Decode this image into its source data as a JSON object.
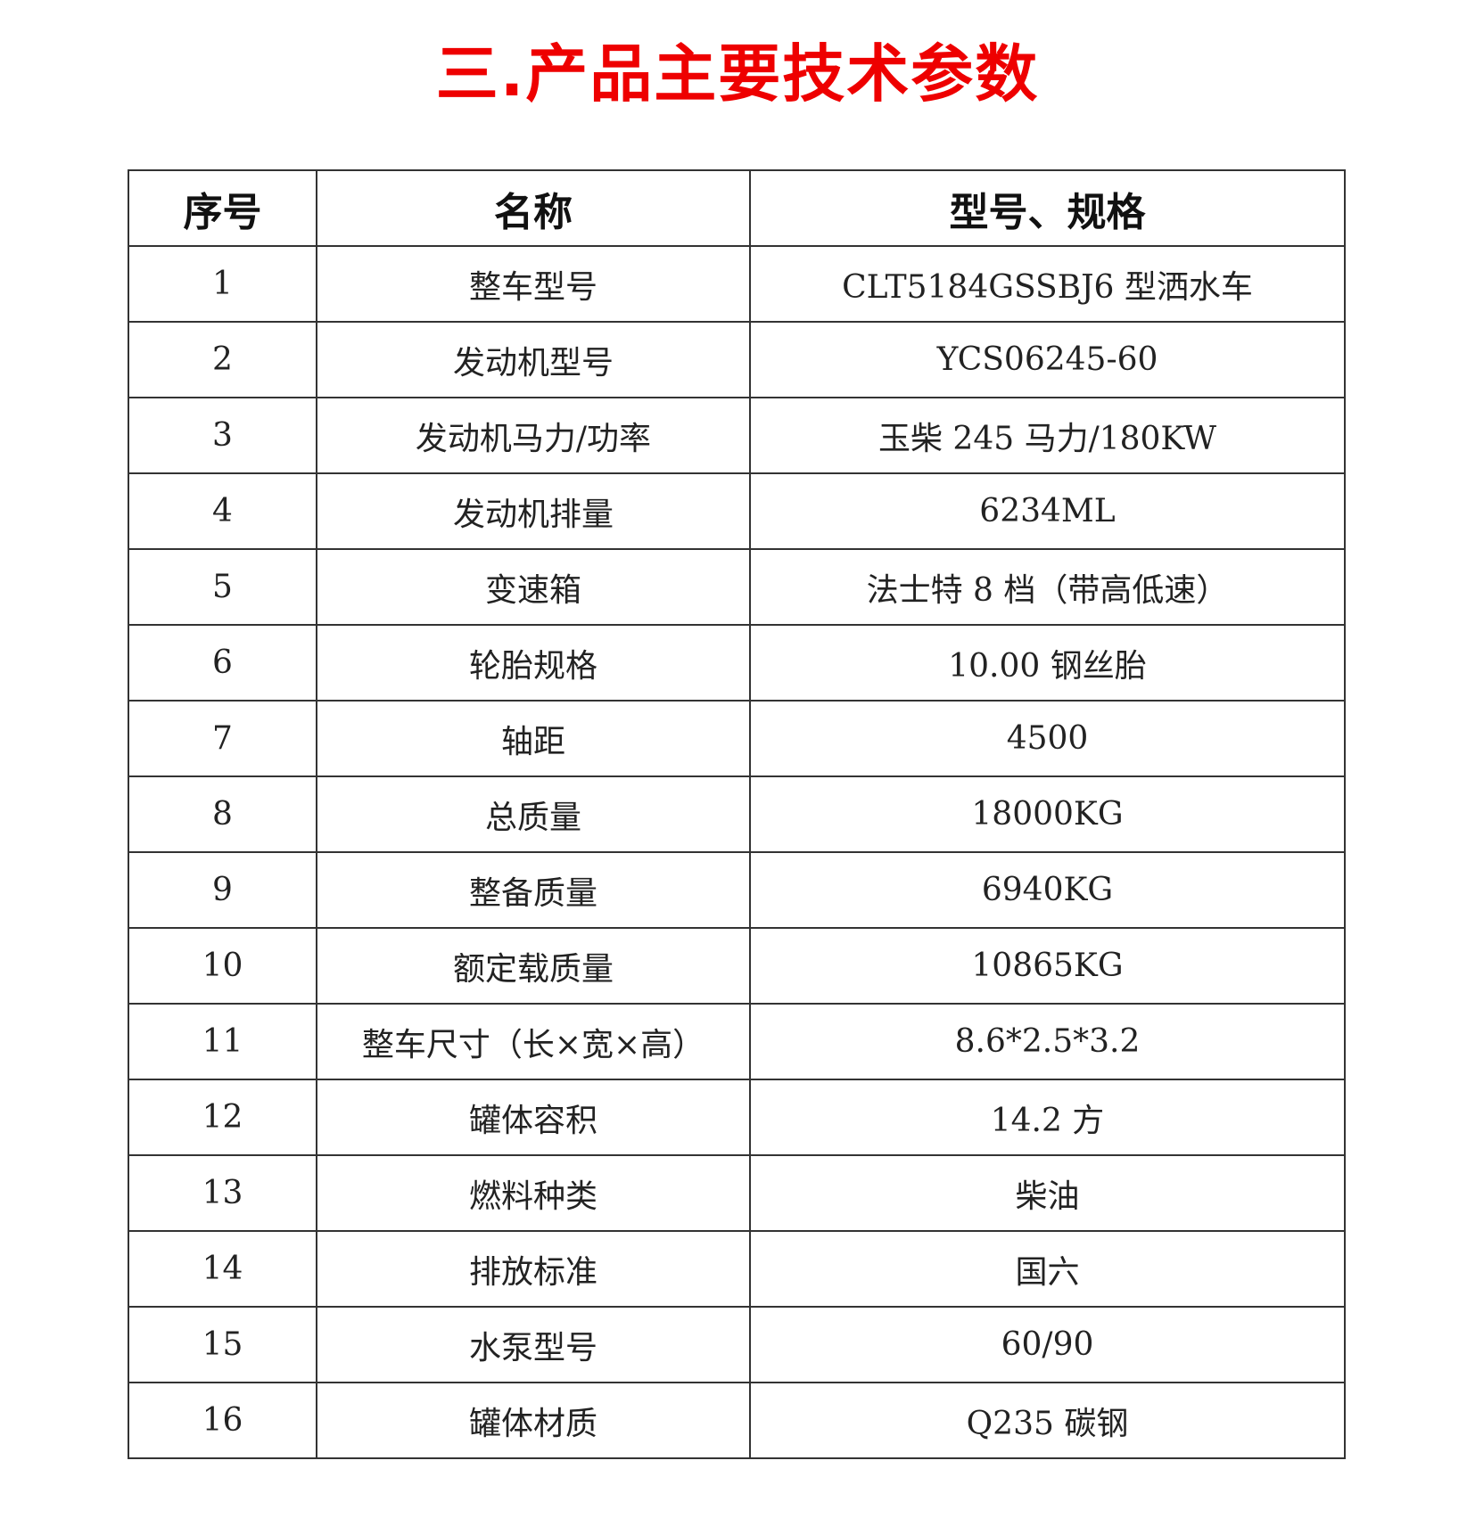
{
  "title": "三.产品主要技术参数",
  "table": {
    "headers": [
      "序号",
      "名称",
      "型号、规格"
    ],
    "rows": [
      [
        "1",
        "整车型号",
        "CLT5184GSSBJ6 型洒水车"
      ],
      [
        "2",
        "发动机型号",
        "YCS06245-60"
      ],
      [
        "3",
        "发动机马力/功率",
        "玉柴 245 马力/180KW"
      ],
      [
        "4",
        "发动机排量",
        "6234ML"
      ],
      [
        "5",
        "变速箱",
        "法士特 8 档（带高低速）"
      ],
      [
        "6",
        "轮胎规格",
        "10.00 钢丝胎"
      ],
      [
        "7",
        "轴距",
        "4500"
      ],
      [
        "8",
        "总质量",
        "18000KG"
      ],
      [
        "9",
        "整备质量",
        "6940KG"
      ],
      [
        "10",
        "额定载质量",
        "10865KG"
      ],
      [
        "11",
        "整车尺寸（长×宽×高）",
        "8.6*2.5*3.2"
      ],
      [
        "12",
        "罐体容积",
        "14.2 方"
      ],
      [
        "13",
        "燃料种类",
        "柴油"
      ],
      [
        "14",
        "排放标准",
        "国六"
      ],
      [
        "15",
        "水泵型号",
        "60/90"
      ],
      [
        "16",
        "罐体材质",
        "Q235 碳钢"
      ]
    ]
  },
  "colors": {
    "title": "#ee0000",
    "border": "#333333"
  }
}
